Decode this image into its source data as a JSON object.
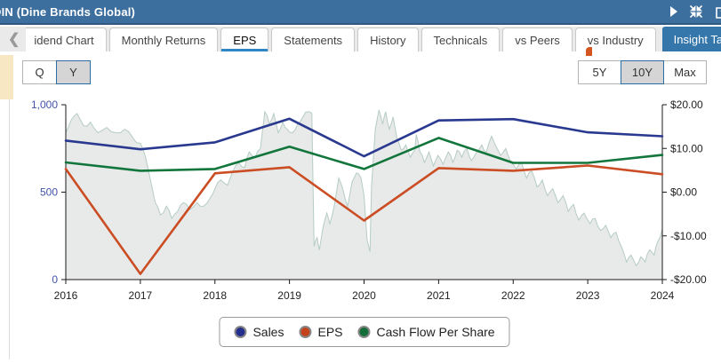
{
  "header": {
    "title": "DIN (Dine Brands Global)",
    "right_icons": [
      "play-icon",
      "compress-icon",
      "external-link-icon"
    ]
  },
  "tabs": {
    "scroll_left_icon": "chevron-left-icon",
    "items": [
      {
        "label": "idend Chart",
        "active": false
      },
      {
        "label": "Monthly Returns",
        "active": false
      },
      {
        "label": "EPS",
        "active": true
      },
      {
        "label": "Statements",
        "active": false
      },
      {
        "label": "History",
        "active": false
      },
      {
        "label": "Technicals",
        "active": false
      },
      {
        "label": "vs Peers",
        "active": false
      },
      {
        "label": "vs Industry",
        "active": false
      }
    ],
    "insight_button": {
      "label": "Insight Tabs",
      "icon": "caret-down-icon"
    },
    "menu_icon": "hamburger-icon"
  },
  "controls": {
    "period_toggle": {
      "options": [
        "Q",
        "Y"
      ],
      "selected": "Y"
    },
    "range_toggle": {
      "options": [
        "5Y",
        "10Y",
        "Max"
      ],
      "selected": "10Y"
    }
  },
  "chart_data": {
    "type": "line",
    "x": [
      2016,
      2017,
      2018,
      2019,
      2020,
      2021,
      2022,
      2023,
      2024
    ],
    "x_axis": {
      "labels": [
        "2016",
        "2017",
        "2018",
        "2019",
        "2020",
        "2021",
        "2022",
        "2023",
        "2024"
      ]
    },
    "left_axis": {
      "range": [
        0,
        1000
      ],
      "color": "#4152a8",
      "ticks": [
        {
          "label": "1,000",
          "value": 1000
        },
        {
          "label": "500",
          "value": 500
        },
        {
          "label": "0",
          "value": 0
        }
      ]
    },
    "right_axis": {
      "range": [
        -20,
        20
      ],
      "color": "#222222",
      "ticks": [
        {
          "label": "$20.00",
          "value": 20
        },
        {
          "label": "$10.00",
          "value": 10
        },
        {
          "label": "$0.00",
          "value": 0
        },
        {
          "label": "-$10.00",
          "value": -10
        },
        {
          "label": "-$20.00",
          "value": -20
        }
      ]
    },
    "series": [
      {
        "name": "Sales",
        "axis": "left",
        "color": "#2a3990",
        "values": [
          795,
          745,
          785,
          920,
          705,
          910,
          918,
          842,
          820
        ]
      },
      {
        "name": "EPS",
        "axis": "right",
        "color": "#cb4d24",
        "values": [
          5.3,
          -18.7,
          4.3,
          5.7,
          -6.5,
          5.5,
          4.9,
          6.1,
          4.1
        ]
      },
      {
        "name": "Cash Flow Per Share",
        "axis": "right",
        "color": "#12763c",
        "values": [
          6.8,
          4.9,
          5.3,
          10.4,
          5.3,
          12.4,
          6.7,
          6.7,
          8.5
        ]
      }
    ],
    "price_area": {
      "name": "stock-price-background",
      "fill": "#e8e9e9",
      "stroke": "#b5ccc5",
      "unit": "percent-of-plot-height",
      "points": [
        [
          2016.0,
          84
        ],
        [
          2016.07,
          91
        ],
        [
          2016.15,
          95
        ],
        [
          2016.24,
          88
        ],
        [
          2016.33,
          90
        ],
        [
          2016.43,
          84
        ],
        [
          2016.55,
          87
        ],
        [
          2016.67,
          84
        ],
        [
          2016.79,
          86
        ],
        [
          2016.9,
          81
        ],
        [
          2017.0,
          78
        ],
        [
          2017.07,
          70
        ],
        [
          2017.13,
          58
        ],
        [
          2017.2,
          44
        ],
        [
          2017.27,
          37
        ],
        [
          2017.35,
          42
        ],
        [
          2017.42,
          35
        ],
        [
          2017.5,
          39
        ],
        [
          2017.58,
          44
        ],
        [
          2017.66,
          40
        ],
        [
          2017.76,
          44
        ],
        [
          2017.85,
          42
        ],
        [
          2017.94,
          47
        ],
        [
          2018.0,
          52
        ],
        [
          2018.08,
          57
        ],
        [
          2018.17,
          54
        ],
        [
          2018.24,
          62
        ],
        [
          2018.32,
          67
        ],
        [
          2018.4,
          64
        ],
        [
          2018.46,
          73
        ],
        [
          2018.54,
          70
        ],
        [
          2018.61,
          75
        ],
        [
          2018.67,
          96
        ],
        [
          2018.73,
          89
        ],
        [
          2018.79,
          95
        ],
        [
          2018.85,
          84
        ],
        [
          2018.91,
          90
        ],
        [
          2018.97,
          86
        ],
        [
          2019.04,
          84
        ],
        [
          2019.11,
          89
        ],
        [
          2019.18,
          93
        ],
        [
          2019.25,
          96
        ],
        [
          2019.3,
          95
        ],
        [
          2019.33,
          19
        ],
        [
          2019.37,
          24
        ],
        [
          2019.4,
          17
        ],
        [
          2019.45,
          30
        ],
        [
          2019.5,
          38
        ],
        [
          2019.54,
          32
        ],
        [
          2019.6,
          42
        ],
        [
          2019.66,
          58
        ],
        [
          2019.72,
          51
        ],
        [
          2019.78,
          42
        ],
        [
          2019.84,
          56
        ],
        [
          2019.9,
          61
        ],
        [
          2019.96,
          58
        ],
        [
          2020.0,
          48
        ],
        [
          2020.04,
          23
        ],
        [
          2020.08,
          16
        ],
        [
          2020.1,
          53
        ],
        [
          2020.15,
          86
        ],
        [
          2020.2,
          97
        ],
        [
          2020.25,
          89
        ],
        [
          2020.29,
          96
        ],
        [
          2020.34,
          86
        ],
        [
          2020.39,
          93
        ],
        [
          2020.44,
          81
        ],
        [
          2020.5,
          74
        ],
        [
          2020.56,
          77
        ],
        [
          2020.62,
          70
        ],
        [
          2020.68,
          74
        ],
        [
          2020.7,
          83
        ],
        [
          2020.75,
          73
        ],
        [
          2020.81,
          67
        ],
        [
          2020.87,
          73
        ],
        [
          2020.93,
          65
        ],
        [
          2020.99,
          71
        ],
        [
          2021.06,
          66
        ],
        [
          2021.13,
          73
        ],
        [
          2021.19,
          67
        ],
        [
          2021.25,
          74
        ],
        [
          2021.31,
          70
        ],
        [
          2021.38,
          75
        ],
        [
          2021.44,
          68
        ],
        [
          2021.51,
          73
        ],
        [
          2021.58,
          77
        ],
        [
          2021.64,
          73
        ],
        [
          2021.71,
          82
        ],
        [
          2021.77,
          76
        ],
        [
          2021.83,
          71
        ],
        [
          2021.9,
          75
        ],
        [
          2021.97,
          67
        ],
        [
          2022.04,
          63
        ],
        [
          2022.11,
          67
        ],
        [
          2022.18,
          58
        ],
        [
          2022.25,
          62
        ],
        [
          2022.32,
          53
        ],
        [
          2022.39,
          57
        ],
        [
          2022.46,
          48
        ],
        [
          2022.53,
          52
        ],
        [
          2022.6,
          44
        ],
        [
          2022.67,
          48
        ],
        [
          2022.74,
          39
        ],
        [
          2022.81,
          43
        ],
        [
          2022.88,
          34
        ],
        [
          2022.95,
          38
        ],
        [
          2023.03,
          32
        ],
        [
          2023.1,
          35
        ],
        [
          2023.17,
          28
        ],
        [
          2023.24,
          31
        ],
        [
          2023.31,
          24
        ],
        [
          2023.38,
          27
        ],
        [
          2023.45,
          19
        ],
        [
          2023.52,
          10
        ],
        [
          2023.58,
          14
        ],
        [
          2023.65,
          8
        ],
        [
          2023.71,
          13
        ],
        [
          2023.77,
          10
        ],
        [
          2023.83,
          17
        ],
        [
          2023.89,
          14
        ],
        [
          2023.94,
          22
        ],
        [
          2024.0,
          29
        ]
      ]
    },
    "legend": [
      {
        "label": "Sales",
        "color": "#232e8d"
      },
      {
        "label": "EPS",
        "color": "#c4431c"
      },
      {
        "label": "Cash Flow Per Share",
        "color": "#156e39"
      }
    ],
    "legend_position": "bottom-center",
    "grid": false
  }
}
